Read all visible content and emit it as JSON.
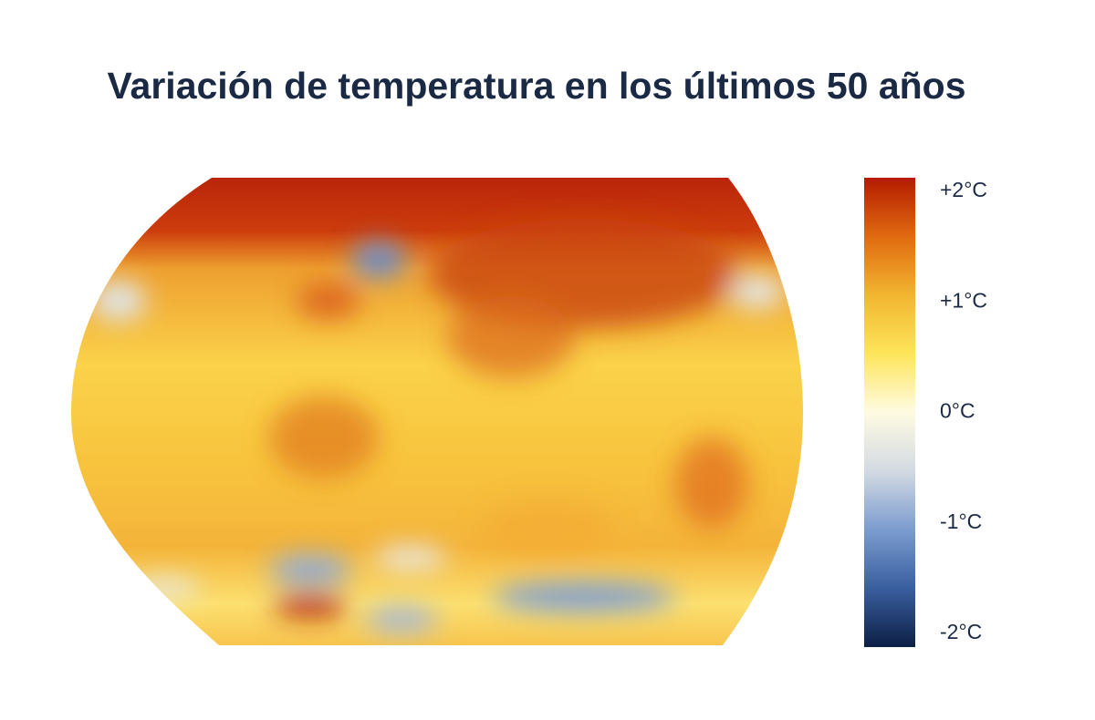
{
  "title": "Variación de temperatura en los últimos 50 años",
  "colorbar": {
    "lim": [
      -2.125,
      2.125
    ],
    "ticks": [
      {
        "value": 2,
        "label": "+2°C"
      },
      {
        "value": 1,
        "label": "+1°C"
      },
      {
        "value": 0,
        "label": "0°C"
      },
      {
        "value": -1,
        "label": "-1°C"
      },
      {
        "value": -2,
        "label": "-2°C"
      }
    ],
    "colors": [
      "#0c1f45",
      "#3a5f9f",
      "#7b9ccf",
      "#d3dae2",
      "#fffbe2",
      "#fde55a",
      "#f2b530",
      "#e06a10",
      "#b31b00"
    ]
  }
}
